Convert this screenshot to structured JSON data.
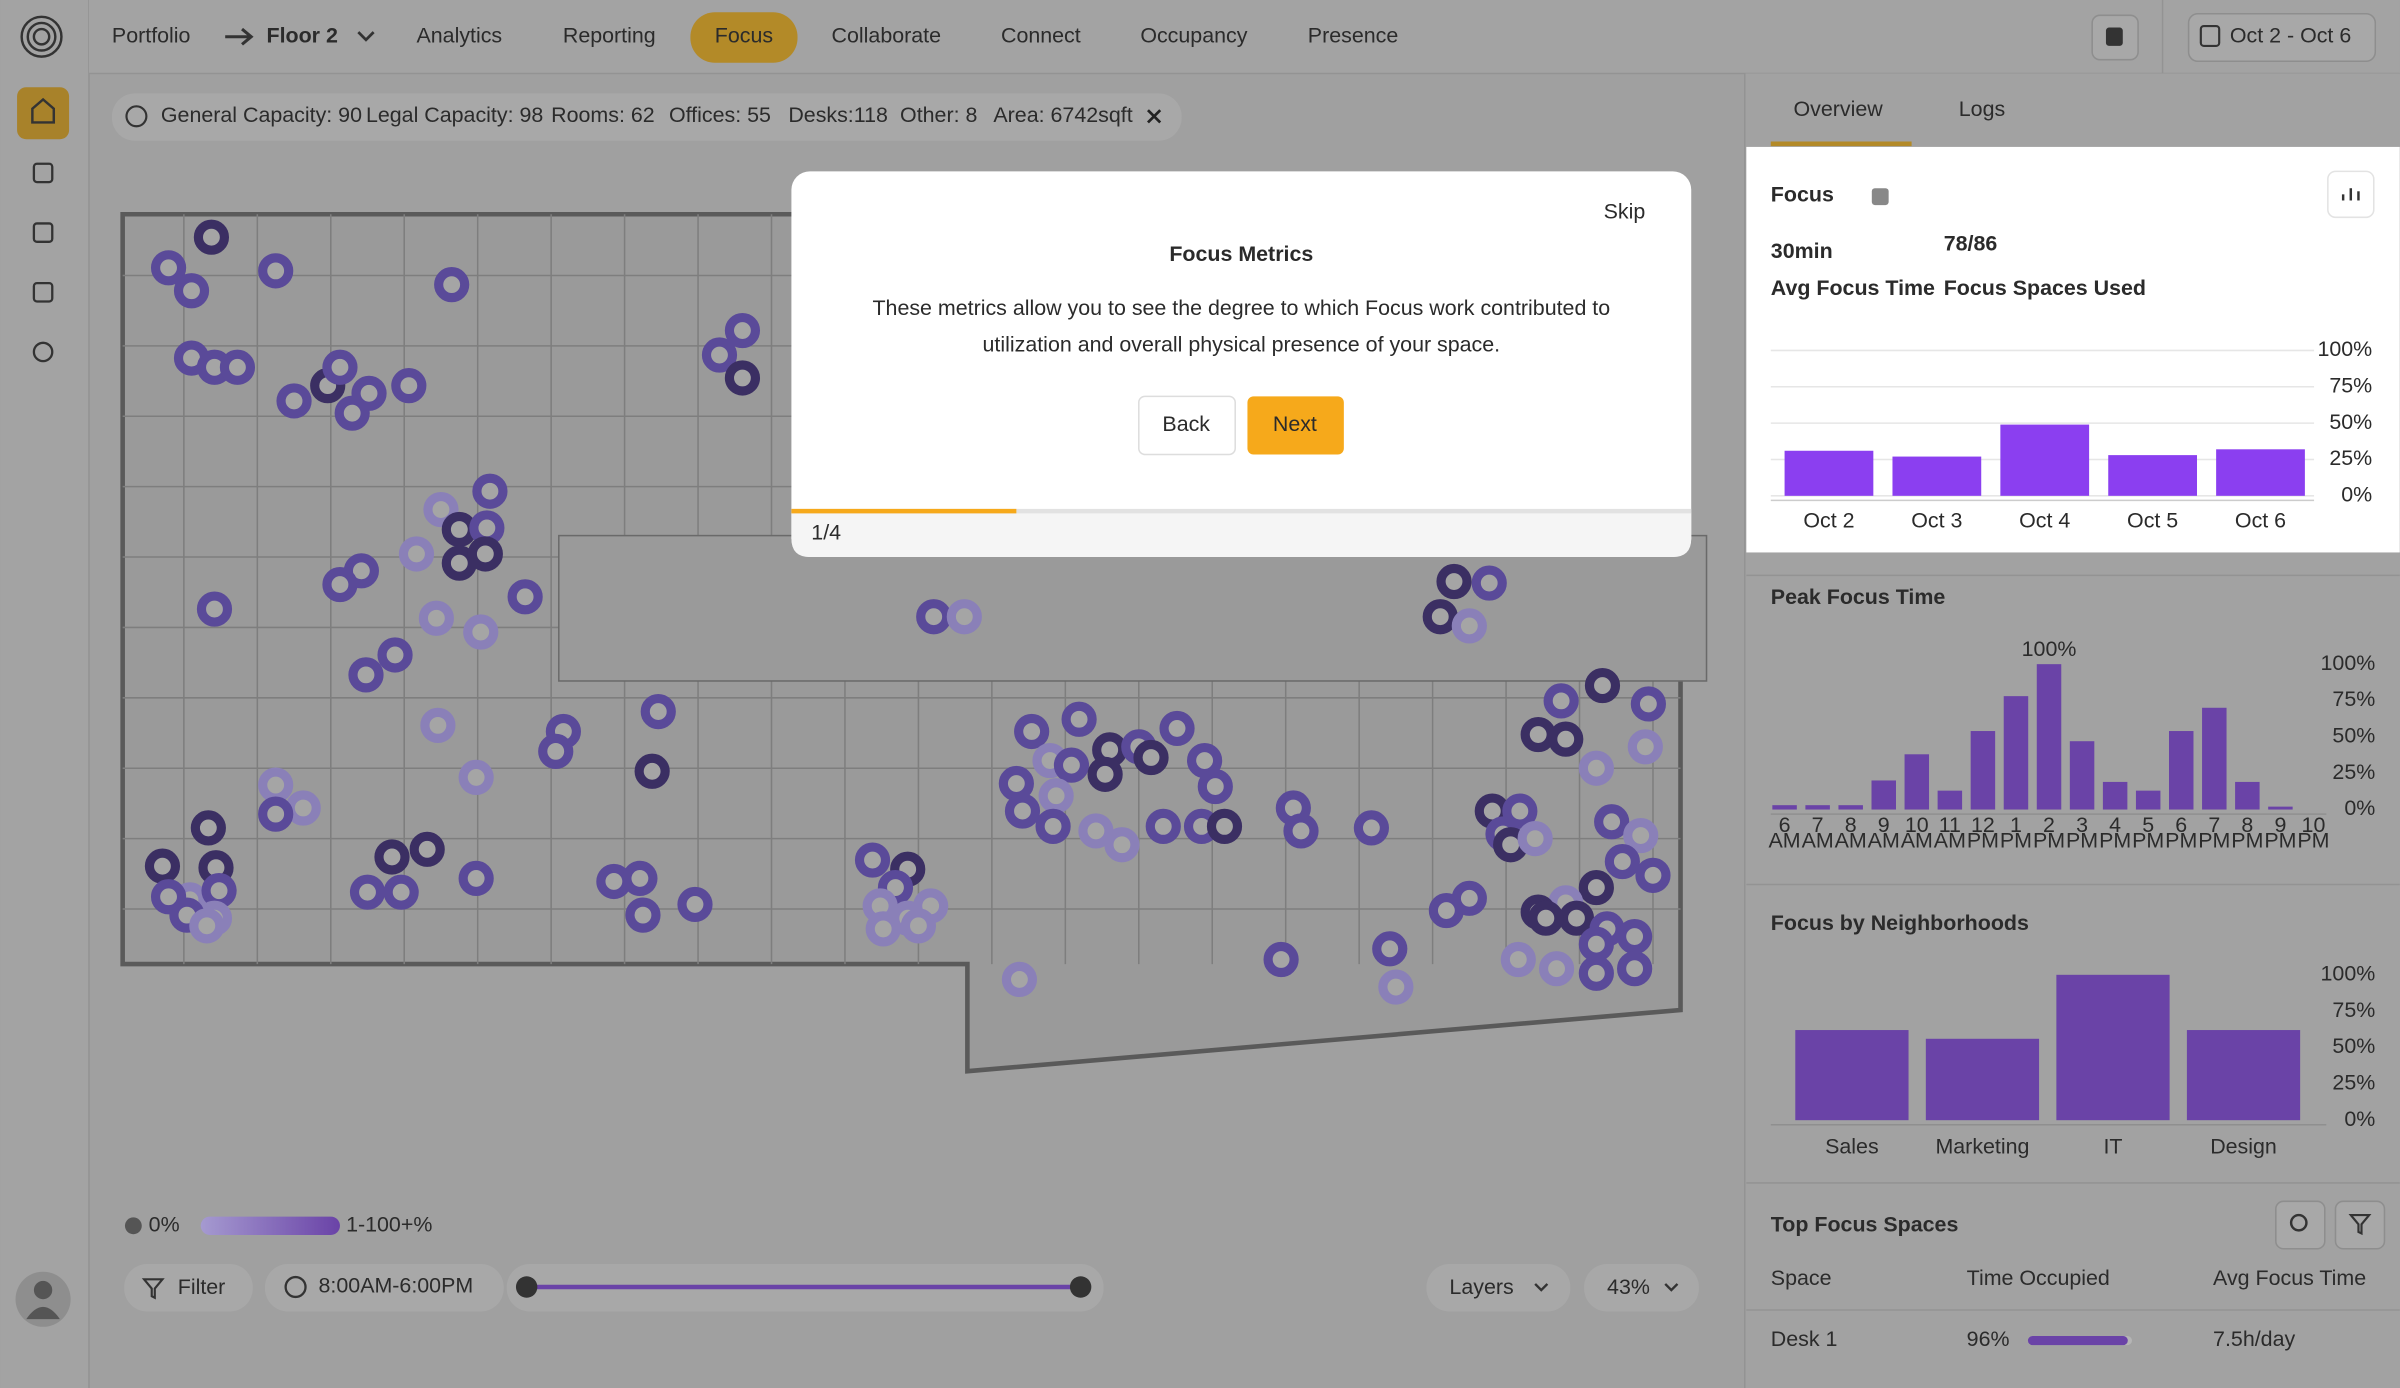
{
  "nav": {
    "breadcrumb": [
      "Portfolio",
      "Floor 2"
    ],
    "tabs": [
      "Analytics",
      "Reporting",
      "Focus",
      "Collaborate",
      "Connect",
      "Occupancy",
      "Presence"
    ],
    "active_tab": 2,
    "date_range": "Oct 2 - Oct 6"
  },
  "info_bar": [
    "General Capacity: 90",
    "Legal Capacity: 98",
    "Rooms: 62",
    "Offices: 55",
    "Desks:118",
    "Other: 8",
    "Area: 6742sqft"
  ],
  "modal": {
    "skip": "Skip",
    "title": "Focus Metrics",
    "body": [
      "These metrics allow you to see the degree to which Focus work contributed to",
      "utilization and overall physical presence of your space."
    ],
    "back": "Back",
    "next": "Next",
    "step": "1/4"
  },
  "legend": {
    "low": "0%",
    "high": "1-100+%"
  },
  "controls": {
    "filter": "Filter",
    "time_range": "8:00AM-6:00PM",
    "layers": "Layers",
    "zoom": "43%"
  },
  "panel": {
    "tabs": [
      "Overview",
      "Logs"
    ],
    "focus": {
      "title": "Focus",
      "metrics": [
        {
          "value": "30min",
          "label": "Avg Focus Time"
        },
        {
          "value": "78/86",
          "label": "Focus Spaces Used"
        }
      ],
      "chart_data": {
        "type": "bar",
        "categories": [
          "Oct 2",
          "Oct 3",
          "Oct 4",
          "Oct 5",
          "Oct 6"
        ],
        "values": [
          31,
          27,
          49,
          28,
          32
        ],
        "color": "#8b3ff0",
        "ylim": [
          0,
          100
        ],
        "yticks": [
          {
            "value": 0,
            "label": "0%"
          },
          {
            "value": 25,
            "label": "25%"
          },
          {
            "value": 50,
            "label": "50%"
          },
          {
            "value": 75,
            "label": "75%"
          },
          {
            "value": 100,
            "label": "100%"
          }
        ],
        "grid": true
      }
    },
    "peak": {
      "title": "Peak Focus Time",
      "chart_data": {
        "type": "bar",
        "categories": [
          "6",
          "7",
          "8",
          "9",
          "10",
          "11",
          "12",
          "1",
          "2",
          "3",
          "4",
          "5",
          "6",
          "7",
          "8",
          "9",
          "10"
        ],
        "periods": [
          "AM",
          "AM",
          "AM",
          "AM",
          "AM",
          "AM",
          "PM",
          "PM",
          "PM",
          "PM",
          "PM",
          "PM",
          "PM",
          "PM",
          "PM",
          "PM",
          "PM"
        ],
        "values": [
          3,
          3,
          3,
          20,
          38,
          13,
          54,
          78,
          100,
          47,
          19,
          13,
          54,
          70,
          19,
          2,
          0
        ],
        "value_labels": [
          null,
          null,
          null,
          null,
          null,
          null,
          null,
          null,
          "100%",
          null,
          null,
          null,
          null,
          null,
          null,
          null,
          null
        ],
        "color": "#6a43a7",
        "ylim": [
          0,
          100
        ],
        "yticks": [
          {
            "value": 0,
            "label": "0%"
          },
          {
            "value": 25,
            "label": "25%"
          },
          {
            "value": 50,
            "label": "50%"
          },
          {
            "value": 75,
            "label": "75%"
          },
          {
            "value": 100,
            "label": "100%"
          }
        ],
        "grid": false
      }
    },
    "neighborhoods": {
      "title": "Focus by Neighborhoods",
      "chart_data": {
        "type": "bar",
        "categories": [
          "Sales",
          "Marketing",
          "IT",
          "Design"
        ],
        "values": [
          62,
          56,
          100,
          62
        ],
        "color": "#6a43a7",
        "ylim": [
          0,
          100
        ],
        "yticks": [
          {
            "value": 0,
            "label": "0%"
          },
          {
            "value": 25,
            "label": "25%"
          },
          {
            "value": 50,
            "label": "50%"
          },
          {
            "value": 75,
            "label": "75%"
          },
          {
            "value": 100,
            "label": "100%"
          }
        ],
        "grid": false
      }
    },
    "top_spaces": {
      "title": "Top Focus Spaces",
      "columns": [
        "Space",
        "Time Occupied",
        "Avg Focus Time"
      ],
      "rows": [
        {
          "space": "Desk 1",
          "occupied": 96,
          "occupied_label": "96%",
          "avg": "7.5h/day"
        }
      ]
    }
  }
}
